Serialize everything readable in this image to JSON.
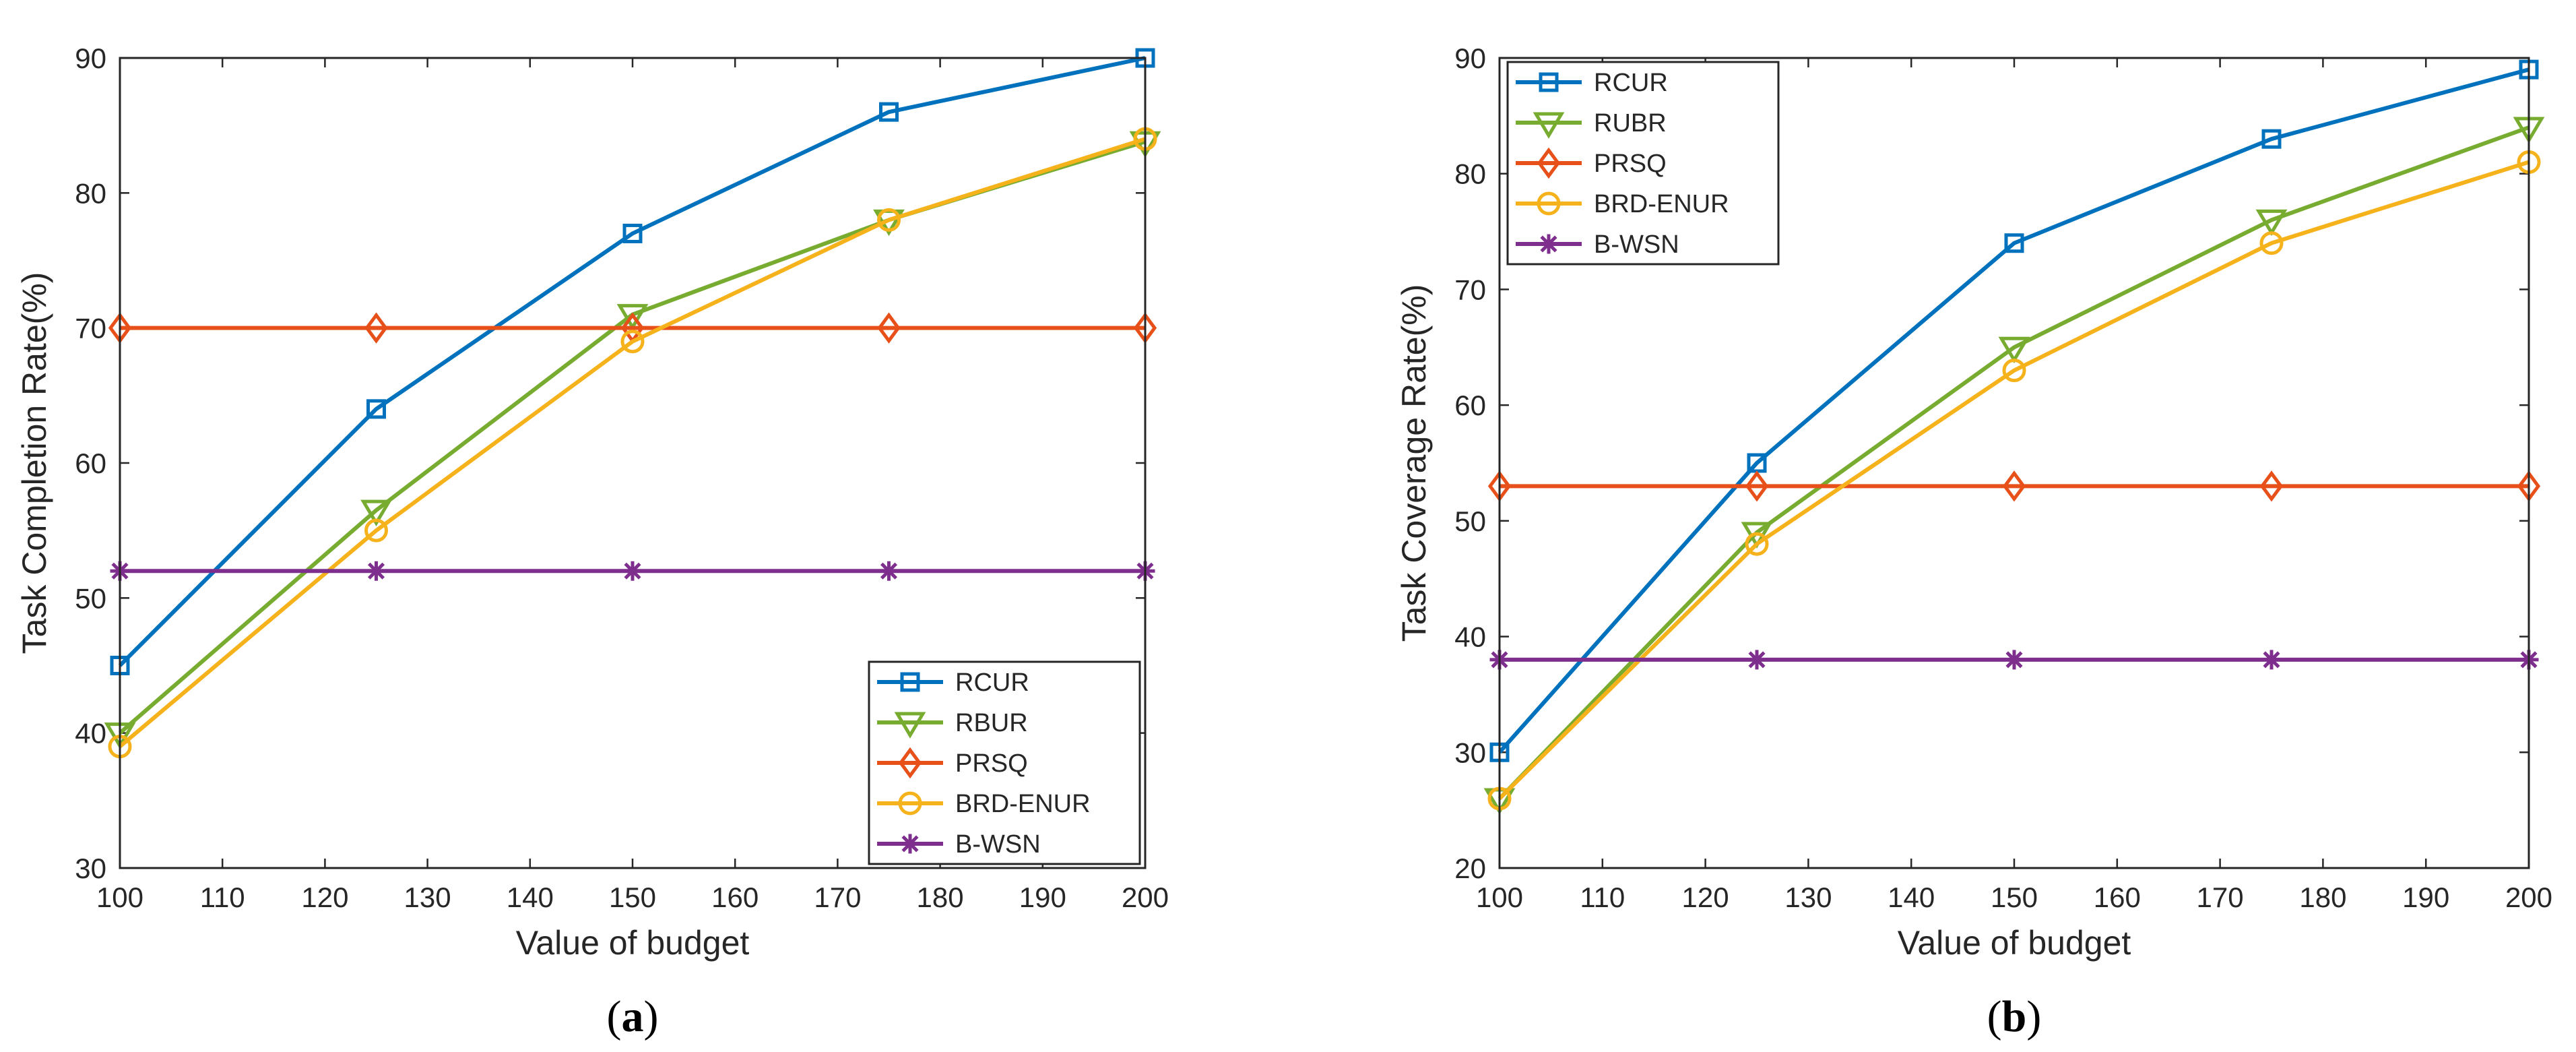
{
  "colors": {
    "RCUR": "#0072BD",
    "RBUR": "#77AC30",
    "RUBR": "#77AC30",
    "PRSQ": "#E8501A",
    "BRD-ENUR": "#F6B21B",
    "B-WSN": "#7E2F8E"
  },
  "chart_data": [
    {
      "type": "line",
      "panel": "a",
      "caption_open": "(",
      "caption_letter": "a",
      "caption_close": ")",
      "xlabel": "Value of budget",
      "ylabel": "Task Completion Rate(%)",
      "xlim": [
        100,
        200
      ],
      "ylim": [
        30,
        90
      ],
      "xticks": [
        100,
        110,
        120,
        130,
        140,
        150,
        160,
        170,
        180,
        190,
        200
      ],
      "yticks": [
        30,
        40,
        50,
        60,
        70,
        80,
        90
      ],
      "x": [
        100,
        125,
        150,
        175,
        200
      ],
      "legend_position": "bottom-right",
      "series": [
        {
          "name": "RCUR",
          "marker": "square",
          "values": [
            45,
            64,
            77,
            86,
            90
          ]
        },
        {
          "name": "RBUR",
          "marker": "triangle-down",
          "values": [
            40,
            56.5,
            71,
            78,
            83.8
          ]
        },
        {
          "name": "PRSQ",
          "marker": "diamond",
          "values": [
            70,
            70,
            70,
            70,
            70
          ]
        },
        {
          "name": "BRD-ENUR",
          "marker": "circle",
          "values": [
            39,
            55,
            69,
            78,
            84
          ]
        },
        {
          "name": "B-WSN",
          "marker": "asterisk",
          "values": [
            52,
            52,
            52,
            52,
            52
          ]
        }
      ]
    },
    {
      "type": "line",
      "panel": "b",
      "caption_open": "(",
      "caption_letter": "b",
      "caption_close": ")",
      "xlabel": "Value of budget",
      "ylabel": "Task Coverage Rate(%)",
      "xlim": [
        100,
        200
      ],
      "ylim": [
        20,
        90
      ],
      "xticks": [
        100,
        110,
        120,
        130,
        140,
        150,
        160,
        170,
        180,
        190,
        200
      ],
      "yticks": [
        20,
        30,
        40,
        50,
        60,
        70,
        80,
        90
      ],
      "x": [
        100,
        125,
        150,
        175,
        200
      ],
      "legend_position": "top-left",
      "series": [
        {
          "name": "RCUR",
          "marker": "square",
          "values": [
            30,
            55,
            74,
            83,
            89
          ]
        },
        {
          "name": "RUBR",
          "marker": "triangle-down",
          "values": [
            26,
            49,
            65,
            76,
            84
          ]
        },
        {
          "name": "PRSQ",
          "marker": "diamond",
          "values": [
            53,
            53,
            53,
            53,
            53
          ]
        },
        {
          "name": "BRD-ENUR",
          "marker": "circle",
          "values": [
            26,
            48,
            63,
            74,
            81
          ]
        },
        {
          "name": "B-WSN",
          "marker": "asterisk",
          "values": [
            38,
            38,
            38,
            38,
            38
          ]
        }
      ]
    }
  ]
}
